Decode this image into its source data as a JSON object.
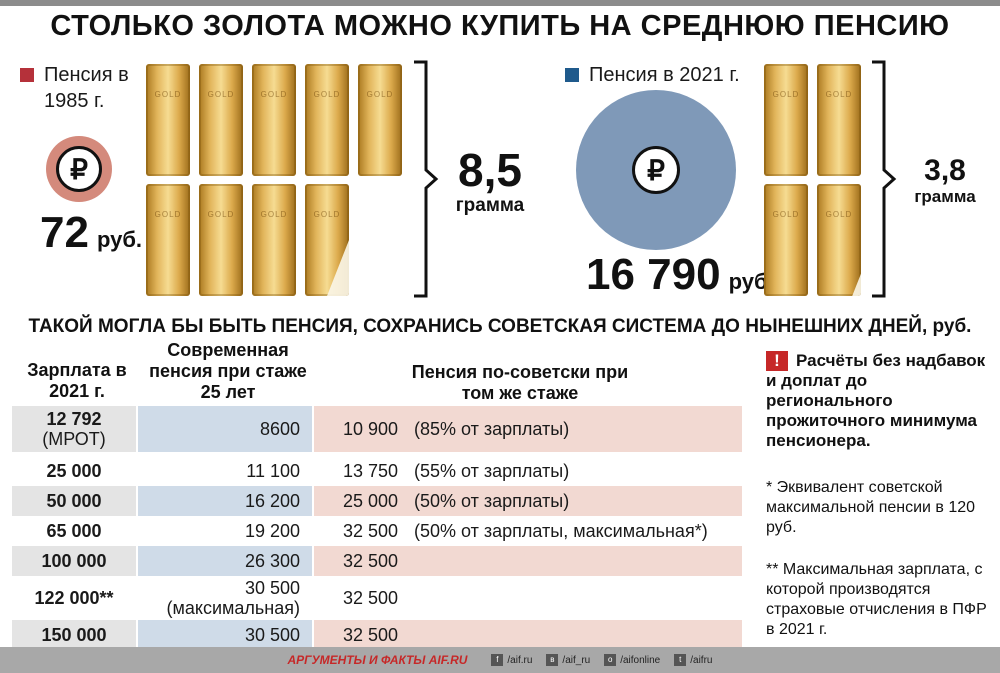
{
  "title": "СТОЛЬКО ЗОЛОТА МОЖНО КУПИТЬ НА СРЕДНЮЮ ПЕНСИЮ",
  "colors": {
    "pension_1985": "#b5313a",
    "coin_1985_ring": "#d48a7c",
    "pension_2021": "#1f5a8c",
    "coin_2021": "#7f99b8",
    "accent_red": "#c62828"
  },
  "left": {
    "legend": "Пенсия в 1985 г.",
    "amount": "72",
    "currency": "руб.",
    "icon": "ruble-icon",
    "bar_stamp": "GOLD",
    "grams_value": "8,5",
    "grams_label": "грамма"
  },
  "right": {
    "legend": "Пенсия в 2021 г.",
    "amount": "16 790",
    "currency": "руб.",
    "icon": "ruble-icon",
    "bar_stamp": "GOLD",
    "grams_value": "3,8",
    "grams_label": "грамма"
  },
  "subtitle": "ТАКОЙ МОГЛА БЫ БЫТЬ ПЕНСИЯ, СОХРАНИСЬ СОВЕТСКАЯ СИСТЕМА ДО НЫНЕШНИХ ДНЕЙ, руб.",
  "table": {
    "col1": "Зарплата в 2021 г.",
    "col2": "Современная пенсия при стаже 25 лет",
    "col3": "Пенсия по-советски при том же стаже",
    "rows": [
      {
        "salary": "12 792",
        "salary_note": "(МРОТ)",
        "modern": "8600",
        "modern_note": "",
        "soviet": "10 900",
        "soviet_note": "(85% от зарплаты)"
      },
      {
        "salary": "25 000",
        "salary_note": "",
        "modern": "11 100",
        "modern_note": "",
        "soviet": "13 750",
        "soviet_note": "(55% от зарплаты)"
      },
      {
        "salary": "50 000",
        "salary_note": "",
        "modern": "16 200",
        "modern_note": "",
        "soviet": "25 000",
        "soviet_note": "(50% от зарплаты)"
      },
      {
        "salary": "65 000",
        "salary_note": "",
        "modern": "19 200",
        "modern_note": "",
        "soviet": "32 500",
        "soviet_note": "(50% от зарплаты, максимальная*)"
      },
      {
        "salary": "100 000",
        "salary_note": "",
        "modern": "26 300",
        "modern_note": "",
        "soviet": "32 500",
        "soviet_note": ""
      },
      {
        "salary": "122 000**",
        "salary_note": "",
        "modern": "30 500",
        "modern_note": "(максимальная)",
        "soviet": "32 500",
        "soviet_note": ""
      },
      {
        "salary": "150 000",
        "salary_note": "",
        "modern": "30 500",
        "modern_note": "",
        "soviet": "32 500",
        "soviet_note": ""
      }
    ]
  },
  "notes": {
    "warning_icon": "exclamation-icon",
    "warning_mark": "!",
    "warning": "Расчёты без надбавок и доплат до регионального прожиточного минимума пенсионера.",
    "note1": "* Эквивалент советской максимальной пенсии в 120 руб.",
    "note2": "** Максимальная зарплата, с которой производятся страховые отчисления в ПФР в 2021 г."
  },
  "footer": {
    "brand": "АРГУМЕНТЫ И ФАКТЫ AIF.RU",
    "links": [
      {
        "icon": "facebook-icon",
        "label": "/aif.ru"
      },
      {
        "icon": "vk-icon",
        "label": "/aif_ru"
      },
      {
        "icon": "ok-icon",
        "label": "/aifonline"
      },
      {
        "icon": "twitter-icon",
        "label": "/aifru"
      }
    ]
  },
  "chart_data": {
    "type": "table",
    "pictograph": {
      "series": [
        {
          "name": "Пенсия в 1985 г.",
          "pension_rub": 72,
          "gold_grams": 8.5
        },
        {
          "name": "Пенсия в 2021 г.",
          "pension_rub": 16790,
          "gold_grams": 3.8
        }
      ]
    },
    "columns": [
      "Зарплата в 2021 г.",
      "Современная пенсия при стаже 25 лет",
      "Пенсия по-советски при том же стаже"
    ],
    "rows": [
      [
        12792,
        8600,
        10900
      ],
      [
        25000,
        11100,
        13750
      ],
      [
        50000,
        16200,
        25000
      ],
      [
        65000,
        19200,
        32500
      ],
      [
        100000,
        26300,
        32500
      ],
      [
        122000,
        30500,
        32500
      ],
      [
        150000,
        30500,
        32500
      ]
    ]
  }
}
